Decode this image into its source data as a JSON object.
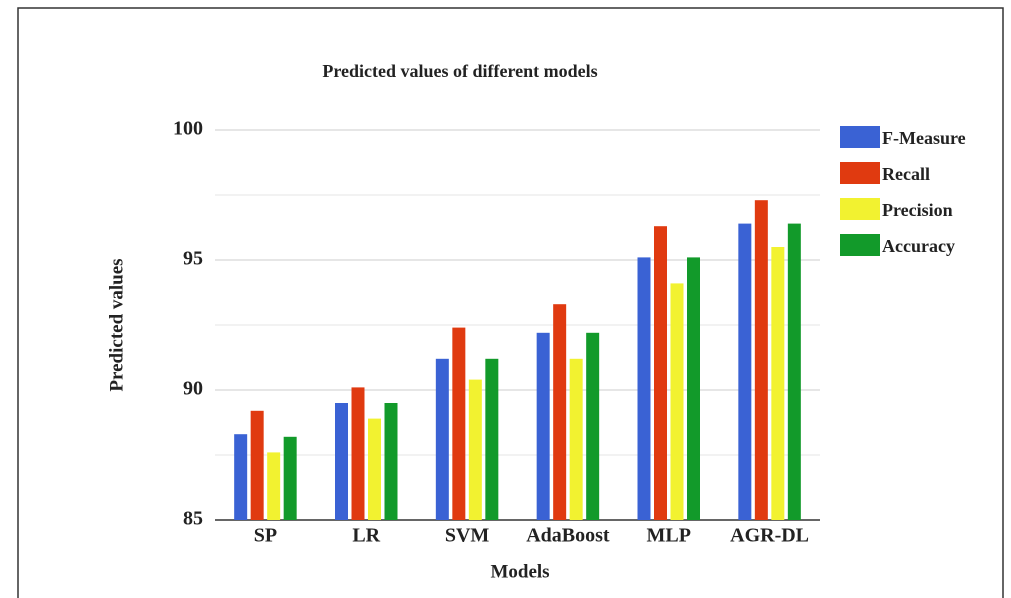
{
  "chart_data": {
    "type": "bar",
    "title": "Predicted values of different models",
    "x_label": "Models",
    "y_label": "Predicted values",
    "categories": [
      "SP",
      "LR",
      "SVM",
      "AdaBoost",
      "MLP",
      "AGR-DL"
    ],
    "series": [
      {
        "name": "F-Measure",
        "color": "#3a62d4",
        "values": [
          88.3,
          89.5,
          91.2,
          92.2,
          95.1,
          96.4
        ]
      },
      {
        "name": "Recall",
        "color": "#e03a10",
        "values": [
          89.2,
          90.1,
          92.4,
          93.3,
          96.3,
          97.3
        ]
      },
      {
        "name": "Precision",
        "color": "#f2f230",
        "values": [
          87.6,
          88.9,
          90.4,
          91.2,
          94.1,
          95.5
        ]
      },
      {
        "name": "Accuracy",
        "color": "#129a2a",
        "values": [
          88.2,
          89.5,
          91.2,
          92.2,
          95.1,
          96.4
        ]
      }
    ],
    "ylim": [
      85,
      100
    ],
    "yticks": [
      85,
      90,
      95,
      100
    ],
    "minor_yticks": [
      87.5,
      92.5,
      97.5
    ],
    "grid": true,
    "legend": "right"
  }
}
